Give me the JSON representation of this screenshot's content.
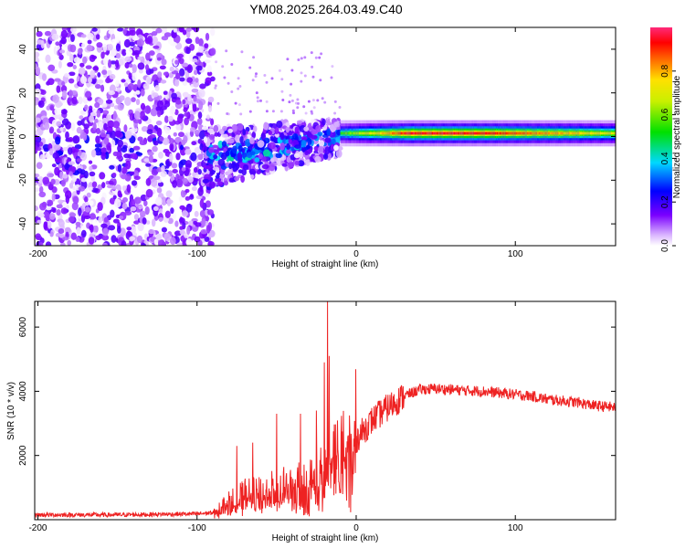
{
  "title": "YM08.2025.264.03.49.C40",
  "chart_data": [
    {
      "type": "heatmap",
      "name": "spectrogram",
      "xlabel": "Height of straight line (km)",
      "ylabel": "Frequency (Hz)",
      "xlim": [
        -202,
        163
      ],
      "ylim": [
        -50,
        50
      ],
      "xticks": [
        -200,
        -100,
        0,
        100
      ],
      "yticks": [
        -40,
        -20,
        0,
        20,
        40
      ],
      "colorbar": {
        "label": "Normalized spectral amplitude",
        "range": [
          0,
          1
        ],
        "ticks": [
          0.0,
          0.2,
          0.4,
          0.6,
          0.8
        ],
        "tick_labels": [
          "0.0",
          "0.2",
          "0.4",
          "0.6",
          "0.8"
        ]
      },
      "features": {
        "noise_region_x": [
          -202,
          -90
        ],
        "ridge_start_x": -10,
        "ridge_frequency_hz": 1.5,
        "ridge_peak_x": [
          30,
          75
        ],
        "ridge_peak_amplitude": 0.95
      }
    },
    {
      "type": "line",
      "name": "snr",
      "xlabel": "Height of straight line (km)",
      "ylabel": "SNR (10 * v/v)",
      "xlim": [
        -202,
        163
      ],
      "ylim": [
        0,
        6800
      ],
      "xticks": [
        -200,
        -100,
        0,
        100
      ],
      "yticks": [
        2000,
        4000,
        6000
      ],
      "series": [
        {
          "name": "SNR",
          "color": "#ee2222",
          "x": [
            -202,
            -180,
            -150,
            -120,
            -100,
            -90,
            -80,
            -70,
            -60,
            -50,
            -40,
            -30,
            -20,
            -18,
            -10,
            0,
            10,
            20,
            30,
            40,
            50,
            60,
            70,
            80,
            90,
            100,
            110,
            120,
            130,
            140,
            150,
            163
          ],
          "y": [
            150,
            150,
            150,
            170,
            180,
            220,
            500,
            700,
            700,
            850,
            900,
            1000,
            1300,
            1500,
            1900,
            2500,
            3100,
            3500,
            3850,
            4050,
            4080,
            4050,
            4020,
            4000,
            3950,
            3900,
            3850,
            3750,
            3700,
            3650,
            3550,
            3500
          ],
          "spikes": [
            {
              "x": -75,
              "y": 2300
            },
            {
              "x": -65,
              "y": 2400
            },
            {
              "x": -50,
              "y": 3300
            },
            {
              "x": -35,
              "y": 3300
            },
            {
              "x": -25,
              "y": 3400
            },
            {
              "x": -20,
              "y": 4900
            },
            {
              "x": -18,
              "y": 6800
            },
            {
              "x": -17,
              "y": 5100
            }
          ]
        }
      ]
    }
  ]
}
